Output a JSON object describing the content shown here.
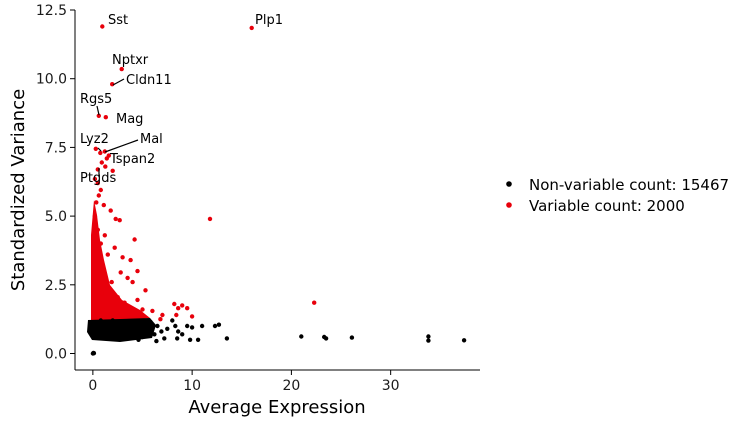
{
  "chart_data": {
    "type": "scatter",
    "xlabel": "Average Expression",
    "ylabel": "Standardized Variance",
    "xlim": [
      -1.8,
      39
    ],
    "ylim": [
      -0.6,
      12.5
    ],
    "x_ticks": [
      0,
      10,
      20,
      30
    ],
    "y_ticks": [
      0.0,
      2.5,
      5.0,
      7.5,
      10.0,
      12.5
    ],
    "x_tick_labels": [
      "0",
      "10",
      "20",
      "30"
    ],
    "y_tick_labels": [
      "0.0",
      "2.5",
      "5.0",
      "7.5",
      "10.0",
      "12.5"
    ],
    "grid": false,
    "legend_position": "right",
    "series": [
      {
        "name": "Non-variable count: 15467",
        "color": "#000000",
        "points": [
          [
            0.0,
            0.0
          ],
          [
            0.05,
            0.02
          ],
          [
            0.1,
            0.01
          ],
          [
            0.3,
            1.1
          ],
          [
            0.5,
            0.9
          ],
          [
            0.8,
            1.2
          ],
          [
            1.0,
            1.0
          ],
          [
            1.2,
            0.7
          ],
          [
            1.5,
            1.1
          ],
          [
            1.8,
            0.9
          ],
          [
            2.0,
            1.2
          ],
          [
            2.3,
            0.8
          ],
          [
            2.6,
            1.0
          ],
          [
            3.0,
            0.9
          ],
          [
            3.3,
            1.1
          ],
          [
            3.6,
            0.7
          ],
          [
            4.0,
            1.0
          ],
          [
            4.4,
            0.9
          ],
          [
            4.8,
            1.1
          ],
          [
            5.2,
            0.8
          ],
          [
            5.5,
            1.0
          ],
          [
            6.0,
            0.9
          ],
          [
            6.5,
            1.0
          ],
          [
            6.9,
            0.8
          ],
          [
            7.5,
            0.9
          ],
          [
            8.0,
            1.2
          ],
          [
            8.3,
            1.0
          ],
          [
            8.6,
            0.8
          ],
          [
            9.0,
            0.7
          ],
          [
            9.5,
            1.0
          ],
          [
            10.6,
            0.5
          ],
          [
            11.0,
            1.0
          ],
          [
            12.3,
            1.0
          ],
          [
            12.7,
            1.05
          ],
          [
            13.5,
            0.55
          ],
          [
            21.0,
            0.62
          ],
          [
            23.3,
            0.6
          ],
          [
            23.5,
            0.55
          ],
          [
            26.1,
            0.58
          ],
          [
            33.8,
            0.62
          ],
          [
            33.8,
            0.47
          ],
          [
            37.4,
            0.48
          ],
          [
            5.0,
            0.6
          ],
          [
            6.4,
            0.45
          ],
          [
            7.2,
            0.55
          ],
          [
            8.5,
            0.55
          ],
          [
            10.0,
            0.95
          ],
          [
            9.8,
            0.5
          ],
          [
            5.8,
            1.15
          ],
          [
            6.2,
            0.7
          ],
          [
            4.6,
            0.5
          ],
          [
            3.8,
            0.6
          ]
        ]
      },
      {
        "name": "Variable count: 2000",
        "color": "#e8000b",
        "points": [
          [
            0.95,
            11.9
          ],
          [
            16.0,
            11.85
          ],
          [
            2.9,
            10.35
          ],
          [
            1.95,
            9.8
          ],
          [
            0.6,
            8.65
          ],
          [
            1.3,
            8.6
          ],
          [
            0.3,
            7.45
          ],
          [
            1.2,
            7.35
          ],
          [
            0.75,
            7.3
          ],
          [
            1.4,
            7.1
          ],
          [
            1.6,
            7.2
          ],
          [
            0.9,
            6.95
          ],
          [
            1.25,
            6.8
          ],
          [
            0.5,
            6.7
          ],
          [
            2.0,
            6.65
          ],
          [
            0.2,
            6.35
          ],
          [
            0.5,
            6.2
          ],
          [
            0.8,
            5.95
          ],
          [
            0.6,
            5.75
          ],
          [
            0.35,
            5.5
          ],
          [
            1.1,
            5.4
          ],
          [
            1.8,
            5.2
          ],
          [
            0.2,
            5.0
          ],
          [
            2.3,
            4.9
          ],
          [
            2.7,
            4.85
          ],
          [
            11.8,
            4.9
          ],
          [
            0.5,
            4.5
          ],
          [
            1.2,
            4.3
          ],
          [
            4.2,
            4.15
          ],
          [
            0.8,
            4.0
          ],
          [
            2.2,
            3.85
          ],
          [
            1.5,
            3.6
          ],
          [
            3.0,
            3.5
          ],
          [
            3.8,
            3.4
          ],
          [
            0.6,
            3.3
          ],
          [
            4.5,
            3.0
          ],
          [
            2.8,
            2.95
          ],
          [
            3.5,
            2.75
          ],
          [
            1.9,
            2.6
          ],
          [
            4.0,
            2.6
          ],
          [
            5.3,
            2.3
          ],
          [
            0.9,
            2.2
          ],
          [
            2.5,
            2.05
          ],
          [
            4.5,
            1.95
          ],
          [
            3.2,
            1.85
          ],
          [
            22.3,
            1.85
          ],
          [
            8.2,
            1.8
          ],
          [
            9.0,
            1.75
          ],
          [
            8.6,
            1.65
          ],
          [
            9.5,
            1.65
          ],
          [
            5.0,
            1.6
          ],
          [
            6.0,
            1.55
          ],
          [
            7.0,
            1.4
          ],
          [
            8.4,
            1.4
          ],
          [
            10.0,
            1.35
          ],
          [
            6.8,
            1.25
          ],
          [
            0.4,
            1.5
          ],
          [
            1.0,
            1.6
          ],
          [
            1.7,
            1.4
          ],
          [
            2.4,
            1.5
          ]
        ]
      }
    ],
    "labels": [
      {
        "text": "Sst"
      },
      {
        "text": "Plp1"
      },
      {
        "text": "Nptxr"
      },
      {
        "text": "Cldn11"
      },
      {
        "text": "Rgs5"
      },
      {
        "text": "Mag"
      },
      {
        "text": "Lyz2"
      },
      {
        "text": "Mal"
      },
      {
        "text": "Tspan2"
      },
      {
        "text": "Ptgds"
      }
    ]
  }
}
